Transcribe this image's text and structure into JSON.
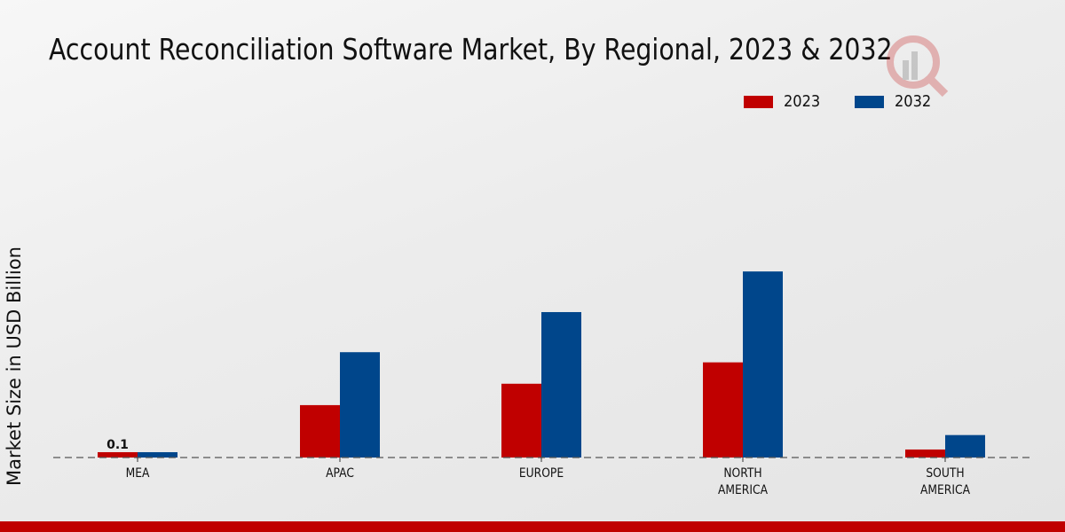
{
  "colors": {
    "series_2023": "#c00000",
    "series_2032": "#00468b",
    "footer": "#c00000"
  },
  "chart_data": {
    "type": "bar",
    "title": "Account Reconciliation Software Market, By Regional, 2023 & 2032",
    "xlabel": "",
    "ylabel": "Market Size in USD Billion",
    "categories": [
      "MEA",
      "APAC",
      "EUROPE",
      "NORTH\nAMERICA",
      "SOUTH\nAMERICA"
    ],
    "series": [
      {
        "name": "2023",
        "values": [
          0.1,
          0.98,
          1.38,
          1.78,
          0.15
        ]
      },
      {
        "name": "2032",
        "values": [
          0.1,
          1.97,
          2.72,
          3.48,
          0.42
        ]
      }
    ],
    "data_labels": [
      {
        "category": "MEA",
        "series": "2023",
        "text": "0.1"
      }
    ],
    "ylim": [
      0,
      4.5
    ],
    "grid": false,
    "legend": "top-right"
  }
}
